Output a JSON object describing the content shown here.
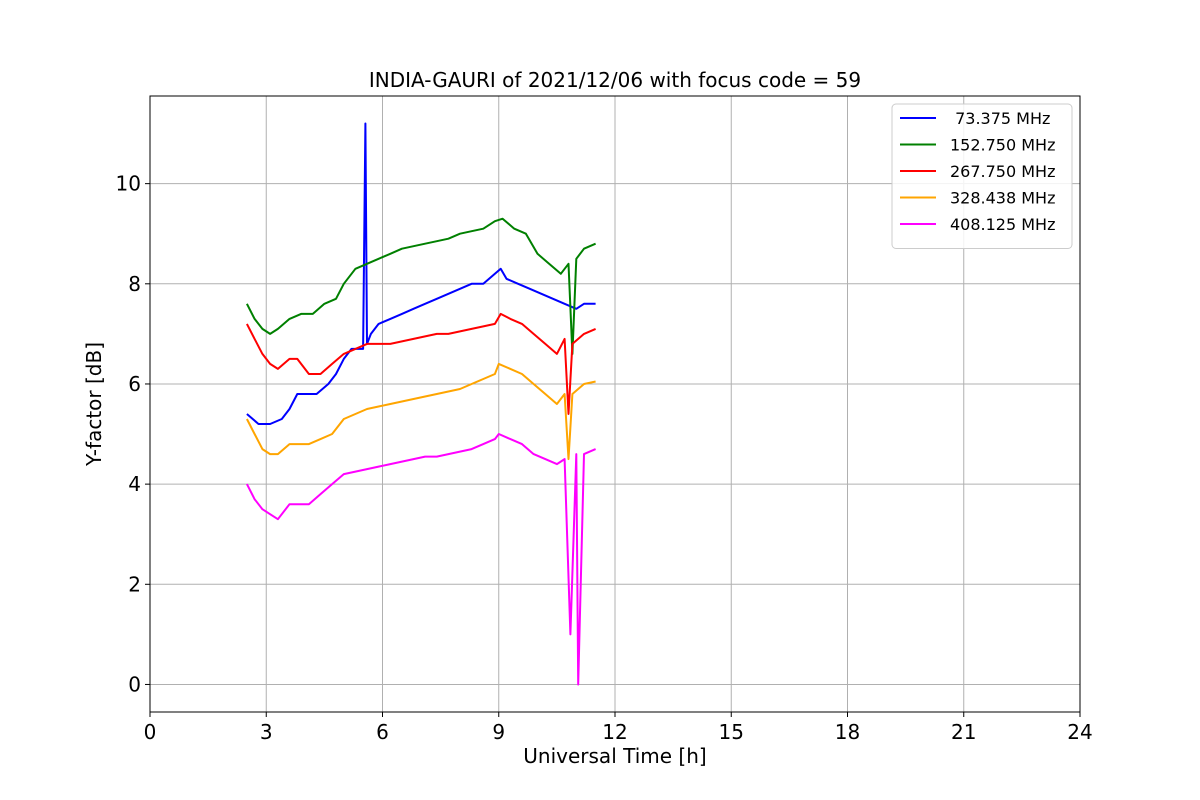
{
  "chart_data": {
    "type": "line",
    "title": "INDIA-GAURI of 2021/12/06 with focus code = 59",
    "xlabel": "Universal Time [h]",
    "ylabel": "Y-factor [dB]",
    "xlim": [
      0,
      24
    ],
    "ylim": [
      -0.55,
      11.75
    ],
    "xticks": [
      0,
      3,
      6,
      9,
      12,
      15,
      18,
      21,
      24
    ],
    "xtick_labels": [
      "0",
      "3",
      "6",
      "9",
      "12",
      "15",
      "18",
      "21",
      "24"
    ],
    "yticks": [
      0,
      2,
      4,
      6,
      8,
      10
    ],
    "ytick_labels": [
      "0",
      "2",
      "4",
      "6",
      "8",
      "10"
    ],
    "grid": true,
    "legend_position": "top-right",
    "series": [
      {
        "name": " 73.375 MHz",
        "color": "#0000ff",
        "x": [
          2.5,
          2.8,
          3.1,
          3.4,
          3.6,
          3.8,
          4.0,
          4.3,
          4.6,
          4.8,
          5.0,
          5.2,
          5.35,
          5.5,
          5.56,
          5.6,
          5.7,
          5.9,
          6.2,
          6.5,
          6.8,
          7.1,
          7.4,
          7.7,
          8.0,
          8.3,
          8.6,
          8.9,
          9.05,
          9.2,
          9.5,
          9.8,
          10.1,
          10.4,
          10.7,
          11.0,
          11.2,
          11.5
        ],
        "y": [
          5.4,
          5.2,
          5.2,
          5.3,
          5.5,
          5.8,
          5.8,
          5.8,
          6.0,
          6.2,
          6.5,
          6.7,
          6.7,
          6.7,
          11.2,
          6.8,
          7.0,
          7.2,
          7.3,
          7.4,
          7.5,
          7.6,
          7.7,
          7.8,
          7.9,
          8.0,
          8.0,
          8.2,
          8.3,
          8.1,
          8.0,
          7.9,
          7.8,
          7.7,
          7.6,
          7.5,
          7.6,
          7.6
        ]
      },
      {
        "name": "152.750 MHz",
        "color": "#008000",
        "x": [
          2.5,
          2.7,
          2.9,
          3.1,
          3.3,
          3.6,
          3.9,
          4.2,
          4.5,
          4.8,
          5.0,
          5.3,
          5.6,
          5.9,
          6.2,
          6.5,
          6.8,
          7.1,
          7.4,
          7.7,
          8.0,
          8.3,
          8.6,
          8.9,
          9.1,
          9.4,
          9.7,
          10.0,
          10.3,
          10.6,
          10.8,
          10.9,
          11.0,
          11.2,
          11.5
        ],
        "y": [
          7.6,
          7.3,
          7.1,
          7.0,
          7.1,
          7.3,
          7.4,
          7.4,
          7.6,
          7.7,
          8.0,
          8.3,
          8.4,
          8.5,
          8.6,
          8.7,
          8.75,
          8.8,
          8.85,
          8.9,
          9.0,
          9.05,
          9.1,
          9.25,
          9.3,
          9.1,
          9.0,
          8.6,
          8.4,
          8.2,
          8.4,
          6.6,
          8.5,
          8.7,
          8.8
        ]
      },
      {
        "name": "267.750 MHz",
        "color": "#ff0000",
        "x": [
          2.5,
          2.7,
          2.9,
          3.1,
          3.3,
          3.6,
          3.8,
          4.1,
          4.4,
          4.7,
          5.0,
          5.3,
          5.6,
          5.9,
          6.2,
          6.5,
          6.8,
          7.1,
          7.4,
          7.7,
          8.0,
          8.3,
          8.6,
          8.9,
          9.05,
          9.3,
          9.6,
          9.9,
          10.2,
          10.5,
          10.7,
          10.8,
          10.9,
          11.2,
          11.5
        ],
        "y": [
          7.2,
          6.9,
          6.6,
          6.4,
          6.3,
          6.5,
          6.5,
          6.2,
          6.2,
          6.4,
          6.6,
          6.7,
          6.8,
          6.8,
          6.8,
          6.85,
          6.9,
          6.95,
          7.0,
          7.0,
          7.05,
          7.1,
          7.15,
          7.2,
          7.4,
          7.3,
          7.2,
          7.0,
          6.8,
          6.6,
          6.9,
          5.4,
          6.8,
          7.0,
          7.1
        ]
      },
      {
        "name": "328.438 MHz",
        "color": "#ffa500",
        "x": [
          2.5,
          2.7,
          2.9,
          3.1,
          3.3,
          3.6,
          3.8,
          4.1,
          4.4,
          4.7,
          5.0,
          5.3,
          5.6,
          5.9,
          6.2,
          6.5,
          6.8,
          7.1,
          7.4,
          7.7,
          8.0,
          8.3,
          8.6,
          8.9,
          9.0,
          9.3,
          9.6,
          9.9,
          10.2,
          10.5,
          10.7,
          10.8,
          10.9,
          11.2,
          11.5
        ],
        "y": [
          5.3,
          5.0,
          4.7,
          4.6,
          4.6,
          4.8,
          4.8,
          4.8,
          4.9,
          5.0,
          5.3,
          5.4,
          5.5,
          5.55,
          5.6,
          5.65,
          5.7,
          5.75,
          5.8,
          5.85,
          5.9,
          6.0,
          6.1,
          6.2,
          6.4,
          6.3,
          6.2,
          6.0,
          5.8,
          5.6,
          5.8,
          4.5,
          5.8,
          6.0,
          6.05
        ]
      },
      {
        "name": "408.125 MHz",
        "color": "#ff00ff",
        "x": [
          2.5,
          2.7,
          2.9,
          3.1,
          3.3,
          3.6,
          3.8,
          4.1,
          4.4,
          4.7,
          5.0,
          5.3,
          5.6,
          5.9,
          6.2,
          6.5,
          6.8,
          7.1,
          7.4,
          7.7,
          8.0,
          8.3,
          8.6,
          8.9,
          9.0,
          9.3,
          9.6,
          9.9,
          10.2,
          10.5,
          10.7,
          10.85,
          11.0,
          11.05,
          11.2,
          11.5
        ],
        "y": [
          4.0,
          3.7,
          3.5,
          3.4,
          3.3,
          3.6,
          3.6,
          3.6,
          3.8,
          4.0,
          4.2,
          4.25,
          4.3,
          4.35,
          4.4,
          4.45,
          4.5,
          4.55,
          4.55,
          4.6,
          4.65,
          4.7,
          4.8,
          4.9,
          5.0,
          4.9,
          4.8,
          4.6,
          4.5,
          4.4,
          4.5,
          1.0,
          4.6,
          0.0,
          4.6,
          4.7
        ]
      }
    ]
  }
}
